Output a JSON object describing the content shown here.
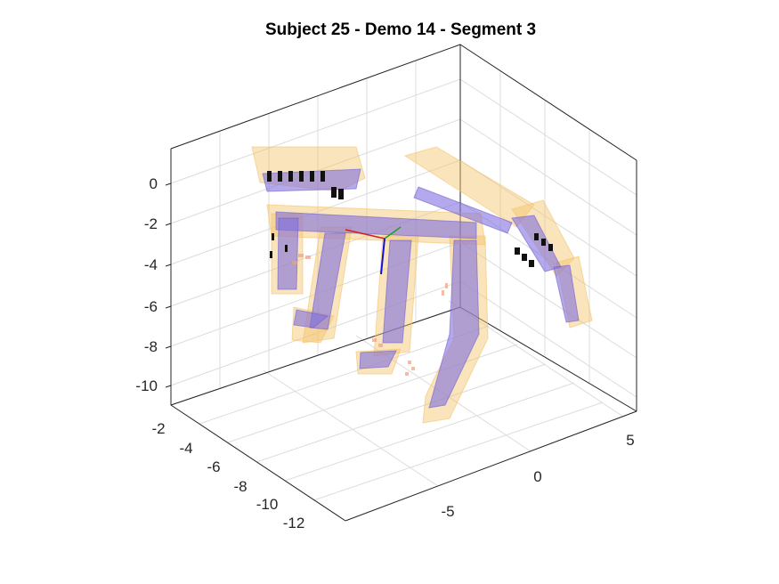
{
  "chart_data": {
    "type": "3d-scatter",
    "title": "Subject 25 - Demo 14 - Segment 3",
    "xlabel": "",
    "ylabel": "",
    "zlabel": "",
    "x_ticks": [
      "-5",
      "0",
      "5"
    ],
    "y_ticks": [
      "-2",
      "-4",
      "-6",
      "-8",
      "-10",
      "-12"
    ],
    "z_ticks": [
      "0",
      "-2",
      "-4",
      "-6",
      "-8",
      "-10"
    ],
    "grid": true,
    "box": "back planes with grid",
    "series": [
      {
        "color": "#f5c36b",
        "opacity": 0.45
      },
      {
        "color": "#8070e0",
        "opacity": 0.6
      },
      {
        "color": "#f0a080",
        "opacity": 0.55
      },
      {
        "color": "#000000",
        "opacity": 1
      }
    ],
    "frame_axes_colors": [
      "#d02020",
      "#20a020",
      "#1010e0"
    ]
  }
}
